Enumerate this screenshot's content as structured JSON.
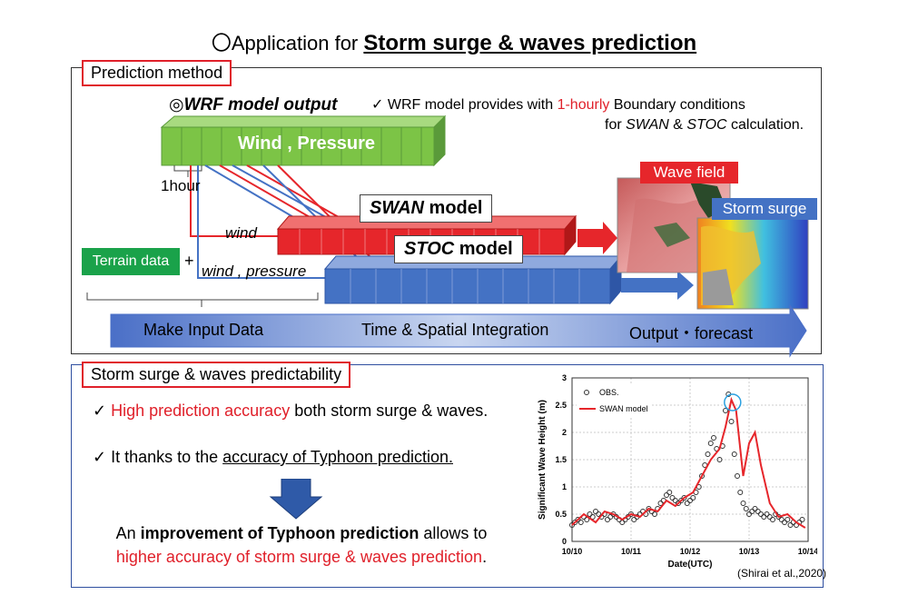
{
  "title": {
    "prefix": "〇Application for ",
    "main": "Storm surge & waves prediction"
  },
  "method": {
    "tag": "Prediction method",
    "wrf_title": "◎WRF model output",
    "note1_pre": "✓ WRF model provides with ",
    "note1_red": "1-hourly",
    "note1_post": " Boundary conditions",
    "note2_pre": "for ",
    "note2_swan": "SWAN",
    "note2_mid": " & ",
    "note2_stoc": "STOC",
    "note2_post": " calculation.",
    "wind_pressure": "Wind , Pressure",
    "one_hour": "1hour",
    "wind": "wind",
    "wind_pressure_lower": "wind , pressure",
    "terrain": "Terrain data",
    "plus": "+",
    "swan_model_i": "SWAN",
    "swan_model_r": " model",
    "stoc_model_i": "STOC",
    "stoc_model_r": " model",
    "wave_field": "Wave field",
    "storm_surge": "Storm surge",
    "step1": "Make Input Data",
    "step2": "Time & Spatial Integration",
    "step3": "Output・forecast",
    "colors": {
      "green": "#7cc446",
      "red": "#e6262b",
      "blue": "#4472c4",
      "tag": "#e0202a"
    }
  },
  "predictability": {
    "tag": "Storm surge & waves predictability",
    "check1_pre": "✓ ",
    "check1_red": "High prediction accuracy",
    "check1_post": "  both storm surge & waves.",
    "check2_pre": "✓ It thanks to the ",
    "check2_u": "accuracy of Typhoon prediction.",
    "concl1_pre": "An ",
    "concl1_b": "improvement of Typhoon prediction",
    "concl1_post": " allows to",
    "concl2_red": "higher accuracy of storm surge & waves prediction",
    "concl2_post": ".",
    "citation": "(Shirai et al.,2020)"
  },
  "chart_data": {
    "type": "line",
    "xlabel": "Date(UTC)",
    "ylabel": "Significant Wave Height (m)",
    "xticks": [
      "10/10",
      "10/11",
      "10/12",
      "10/13",
      "10/14"
    ],
    "yticks": [
      "0",
      "0.5",
      "1",
      "1.5",
      "2",
      "2.5",
      "3"
    ],
    "ylim": [
      0,
      3
    ],
    "xlim": [
      0,
      4
    ],
    "legend_position": "top-left",
    "series": [
      {
        "name": "OBS.",
        "style": "circles",
        "x": [
          0.0,
          0.05,
          0.1,
          0.15,
          0.2,
          0.25,
          0.3,
          0.35,
          0.4,
          0.45,
          0.5,
          0.55,
          0.6,
          0.65,
          0.7,
          0.75,
          0.8,
          0.85,
          0.9,
          0.95,
          1.0,
          1.05,
          1.1,
          1.15,
          1.2,
          1.25,
          1.3,
          1.35,
          1.4,
          1.45,
          1.5,
          1.55,
          1.6,
          1.65,
          1.7,
          1.75,
          1.8,
          1.85,
          1.9,
          1.95,
          2.0,
          2.05,
          2.1,
          2.15,
          2.2,
          2.25,
          2.3,
          2.35,
          2.4,
          2.45,
          2.5,
          2.55,
          2.6,
          2.65,
          2.7,
          2.75,
          2.8,
          2.85,
          2.9,
          2.95,
          3.0,
          3.05,
          3.1,
          3.15,
          3.2,
          3.25,
          3.3,
          3.35,
          3.4,
          3.45,
          3.5,
          3.55,
          3.6,
          3.65,
          3.7,
          3.75,
          3.8,
          3.85,
          3.9
        ],
        "y": [
          0.3,
          0.35,
          0.4,
          0.35,
          0.45,
          0.4,
          0.5,
          0.45,
          0.55,
          0.5,
          0.45,
          0.5,
          0.4,
          0.45,
          0.5,
          0.45,
          0.4,
          0.35,
          0.4,
          0.45,
          0.5,
          0.4,
          0.45,
          0.5,
          0.55,
          0.5,
          0.6,
          0.55,
          0.5,
          0.6,
          0.7,
          0.75,
          0.85,
          0.9,
          0.8,
          0.75,
          0.7,
          0.75,
          0.8,
          0.7,
          0.75,
          0.8,
          0.9,
          1.0,
          1.2,
          1.4,
          1.6,
          1.8,
          1.9,
          1.7,
          1.5,
          1.75,
          2.4,
          2.7,
          2.2,
          1.6,
          1.2,
          0.9,
          0.7,
          0.6,
          0.5,
          0.55,
          0.6,
          0.55,
          0.5,
          0.45,
          0.5,
          0.45,
          0.4,
          0.5,
          0.45,
          0.4,
          0.35,
          0.4,
          0.3,
          0.35,
          0.3,
          0.35,
          0.4
        ]
      },
      {
        "name": "SWAN model",
        "style": "line",
        "color": "#e6262b",
        "x": [
          0.0,
          0.2,
          0.4,
          0.55,
          0.7,
          0.85,
          1.0,
          1.15,
          1.3,
          1.45,
          1.6,
          1.75,
          1.9,
          2.05,
          2.2,
          2.35,
          2.5,
          2.6,
          2.7,
          2.78,
          2.9,
          3.0,
          3.1,
          3.2,
          3.35,
          3.5,
          3.65,
          3.8,
          3.95
        ],
        "y": [
          0.3,
          0.5,
          0.35,
          0.55,
          0.5,
          0.4,
          0.5,
          0.45,
          0.6,
          0.55,
          0.75,
          0.65,
          0.8,
          0.9,
          1.2,
          1.5,
          1.7,
          2.1,
          2.6,
          2.4,
          1.2,
          1.8,
          2.0,
          1.4,
          0.7,
          0.45,
          0.5,
          0.35,
          0.25
        ]
      }
    ],
    "annotation": "circle around SWAN model peak"
  }
}
